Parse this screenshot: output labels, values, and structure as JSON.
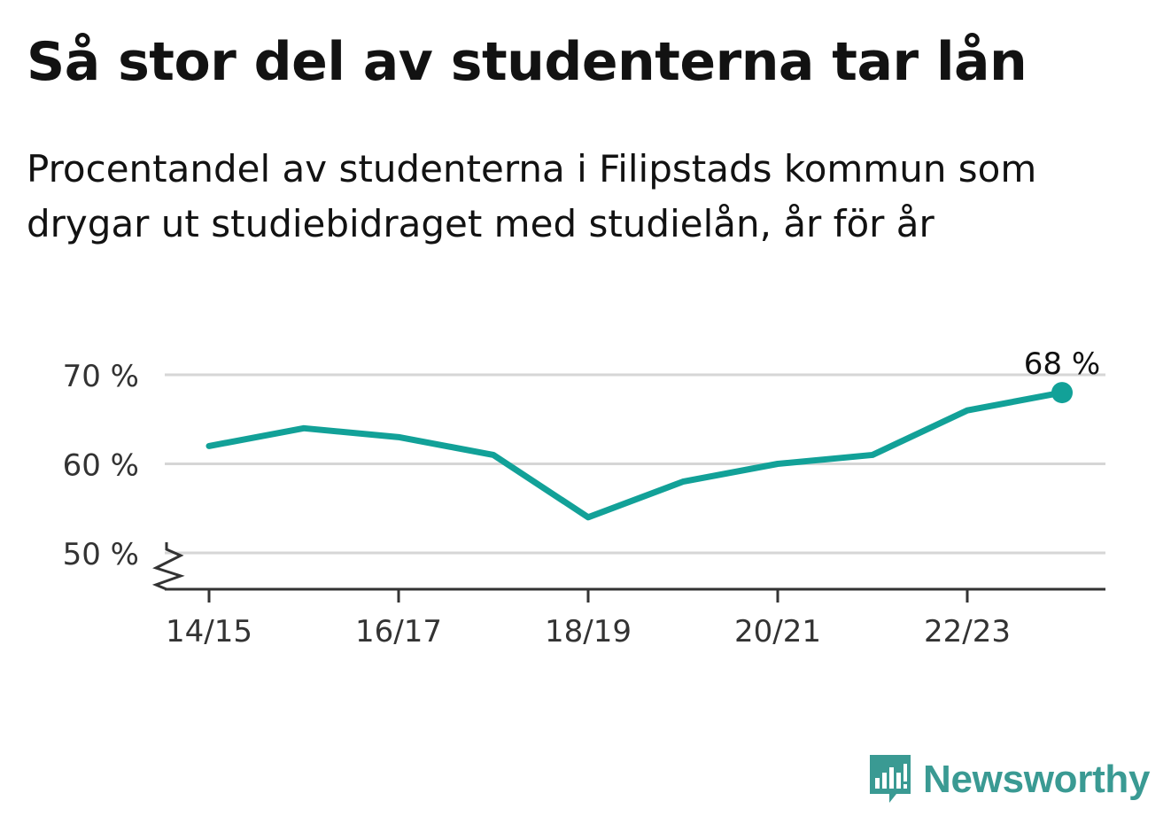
{
  "title": "Så stor del av studenterna tar lån",
  "subtitle": "Procentandel av studenterna i Filipstads kommun som drygar ut studiebidraget med studielån, år för år",
  "brand": {
    "name": "Newsworthy",
    "color": "#3a9a93",
    "icon": "bar-chart-speech-bubble-icon"
  },
  "chart_data": {
    "type": "line",
    "x": [
      "14/15",
      "15/16",
      "16/17",
      "17/18",
      "18/19",
      "19/20",
      "20/21",
      "21/22",
      "22/23",
      "23/24"
    ],
    "x_tick_labels": [
      "14/15",
      "16/17",
      "18/19",
      "20/21",
      "22/23"
    ],
    "series": [
      {
        "values": [
          62,
          64,
          63,
          61,
          54,
          58,
          60,
          61,
          66,
          68
        ],
        "color": "#12a198"
      }
    ],
    "y_ticks": [
      50,
      60,
      70
    ],
    "y_tick_labels": [
      "50 %",
      "60 %",
      "70 %"
    ],
    "ylim": [
      46,
      70
    ],
    "axis_break": true,
    "grid": true,
    "end_label": "68 %"
  }
}
